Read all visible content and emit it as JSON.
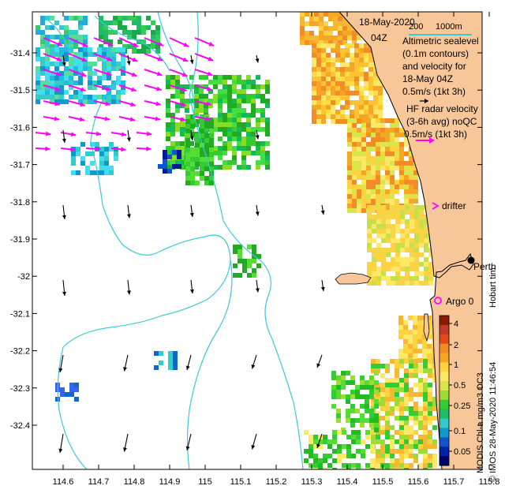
{
  "map": {
    "title": {
      "date": "18-May-2020",
      "time": "04Z"
    },
    "scale_bar": {
      "labels": [
        "200",
        "1000m"
      ]
    },
    "legend": {
      "altimetry": [
        "Altimetric sealevel",
        "(0.1m contours)",
        "and velocity for",
        "18-May 04Z",
        "0.5m/s (1kt 3h)"
      ],
      "hf_radar": [
        "HF radar velocity",
        "(3-6h avg) noQC",
        "0.5m/s (1kt 3h)"
      ],
      "drifter": "drifter",
      "argo": "Argo 0"
    },
    "places": {
      "perth": "Perth",
      "hobart": "Hobart tim"
    },
    "colorbar": {
      "ticks": [
        "4",
        "2",
        "1",
        "0.5",
        "0.25",
        "0.1",
        "0.05"
      ],
      "side_label": "MODIS Chl-a mg/m3 OC3",
      "credit": "© IMOS 28-May-2020 11:46:54"
    },
    "x_ticks": [
      "114.6",
      "114.7",
      "114.8",
      "114.9",
      "115",
      "115.1",
      "115.2",
      "115.3",
      "115.4",
      "115.5",
      "115.6",
      "115.7",
      "115.8"
    ],
    "y_ticks": [
      "-31.4",
      "-31.5",
      "-31.6",
      "-31.7",
      "-31.8",
      "-31.9",
      "-32",
      "-32.1",
      "-32.2",
      "-32.3",
      "-32.4"
    ],
    "colors": {
      "land": "#f7c79a",
      "ocean": "#ffffff",
      "bathymetry": "#3cc9d9",
      "hf_arrow": "#ff00ff",
      "alt_arrow": "#000000"
    }
  }
}
